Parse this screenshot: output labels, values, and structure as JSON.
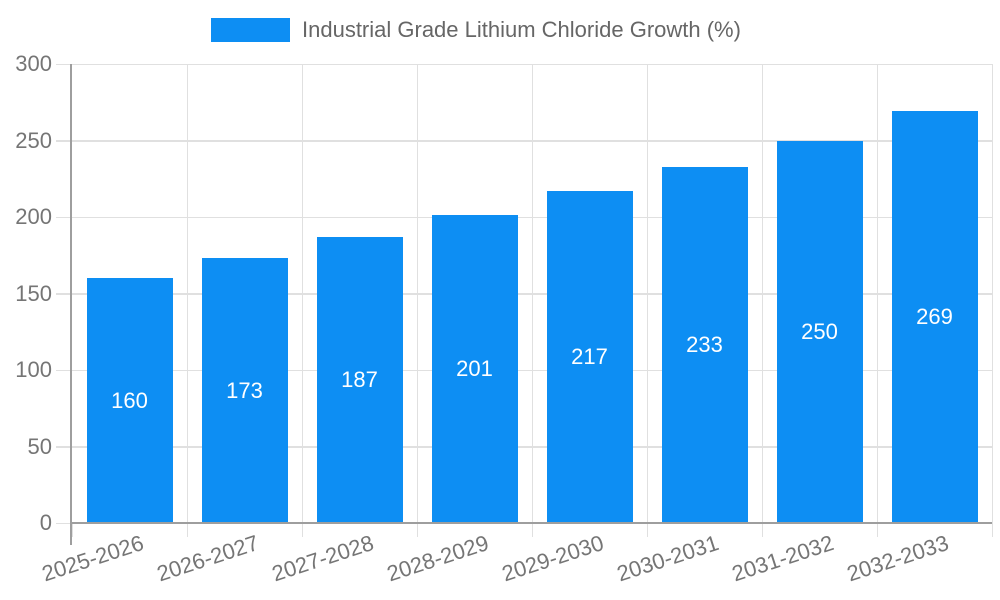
{
  "legend": {
    "label": "Industrial Grade Lithium Chloride Growth (%)"
  },
  "chart_data": {
    "type": "bar",
    "title": "",
    "series_name": "Industrial Grade Lithium Chloride Growth (%)",
    "categories": [
      "2025-2026",
      "2026-2027",
      "2027-2028",
      "2028-2029",
      "2029-2030",
      "2030-2031",
      "2031-2032",
      "2032-2033"
    ],
    "values": [
      160,
      173,
      187,
      201,
      217,
      233,
      250,
      269
    ],
    "xlabel": "",
    "ylabel": "",
    "ylim": [
      0,
      300
    ],
    "yticks": [
      0,
      50,
      100,
      150,
      200,
      250,
      300
    ],
    "grid": true,
    "legend_position": "top-center",
    "value_label_position": "inside-center",
    "colors": {
      "bar": "#0d8ef3",
      "grid": "#e0e0e0",
      "axis": "#9e9e9e",
      "tick_text": "#757575",
      "legend_text": "#666666",
      "value_label": "#ffffff",
      "background": "#ffffff"
    }
  }
}
